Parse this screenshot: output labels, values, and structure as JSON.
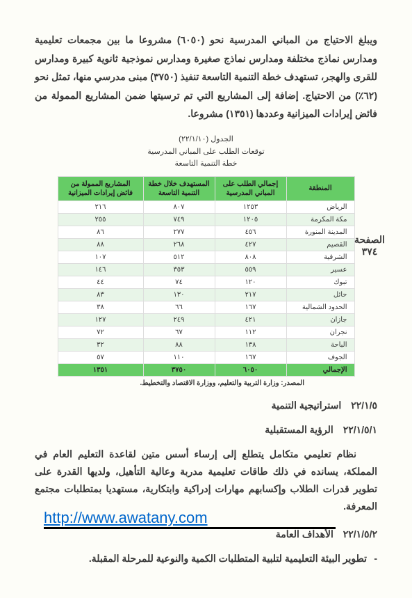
{
  "intro": "ويبلغ الاحتياج من المباني المدرسية نحو (٦٠٥٠) مشروعا ما بين مجمعات تعليمية ومدارس نماذج مختلفة ومدارس نماذج صغيرة ومدارس نموذجية ثانوية كبيرة ومدارس للقرى والهجر، تستهدف خطة التنمية التاسعة تنفيذ (٣٧٥٠) مبنى مدرسي منها، تمثل نحو (٦٢٪) من الاحتياج. إضافة إلى المشاريع التي تم ترسيتها ضمن المشاريع الممولة من فائض إيرادات الميزانية وعددها (١٣٥١) مشروعا.",
  "table_caption": {
    "line1": "الجدول (٢٢/١/١٠)",
    "line2": "توقعات الطلب على المباني المدرسية",
    "line3": "خطة التنمية التاسعة"
  },
  "table": {
    "headers": [
      "المنطقة",
      "إجمالي الطلب على المباني المدرسية",
      "المستهدف خلال خطة التنمية التاسعة",
      "المشاريع الممولة من فائض إيرادات الميزانية"
    ],
    "rows": [
      {
        "region": "الرياض",
        "c1": "١٢٥٣",
        "c2": "٨٠٧",
        "c3": "٢١٦"
      },
      {
        "region": "مكة المكرمة",
        "c1": "١٢٠٥",
        "c2": "٧٤٩",
        "c3": "٢٥٥"
      },
      {
        "region": "المدينة المنورة",
        "c1": "٤٥٦",
        "c2": "٢٧٧",
        "c3": "٨٦"
      },
      {
        "region": "القصيم",
        "c1": "٤٢٧",
        "c2": "٢٦٨",
        "c3": "٨٨"
      },
      {
        "region": "الشرقية",
        "c1": "٨٠٨",
        "c2": "٥١٢",
        "c3": "١٠٧"
      },
      {
        "region": "عسير",
        "c1": "٥٥٩",
        "c2": "٣٥٣",
        "c3": "١٤٦"
      },
      {
        "region": "تبوك",
        "c1": "١٢٠",
        "c2": "٧٤",
        "c3": "٤٤"
      },
      {
        "region": "حائل",
        "c1": "٢١٧",
        "c2": "١٣٠",
        "c3": "٨٣"
      },
      {
        "region": "الحدود الشمالية",
        "c1": "١٦٧",
        "c2": "٦٦",
        "c3": "٣٨"
      },
      {
        "region": "جازان",
        "c1": "٤٢١",
        "c2": "٢٤٩",
        "c3": "١٢٧"
      },
      {
        "region": "نجران",
        "c1": "١١٢",
        "c2": "٦٧",
        "c3": "٧٢"
      },
      {
        "region": "الباحة",
        "c1": "١٣٨",
        "c2": "٨٨",
        "c3": "٣٢"
      },
      {
        "region": "الجوف",
        "c1": "١٦٧",
        "c2": "١١٠",
        "c3": "٥٧"
      }
    ],
    "total": {
      "region": "الإجمالي",
      "c1": "٦٠٥٠",
      "c2": "٣٧٥٠",
      "c3": "١٣٥١"
    }
  },
  "source": "المصدر: وزارة التربية والتعليم، ووزارة الاقتصاد والتخطيط.",
  "sections": {
    "s1_num": "٢٢/١/٥",
    "s1_title": "استراتيجية التنمية",
    "s2_num": "٢٢/١/٥/١",
    "s2_title": "الرؤية المستقبلية",
    "s2_body": "نظام تعليمي متكامل يتطلع إلى إرساء أسس متين لقاعدة التعليم العام في المملكة، يسانده في ذلك طاقات تعليمية مدربة وعالية التأهيل، ولديها القدرة على تطوير قدرات الطلاب وإكسابهم مهارات إدراكية وابتكارية، مستهديا بمتطلبات مجتمع المعرفة.",
    "s3_num": "٢٢/١/٥/٢",
    "s3_title": "الأهداف العامة",
    "s3_item": "تطوير البيئة التعليمية لتلبية المتطلبات الكمية والنوعية للمرحلة المقبلة."
  },
  "page_label": "الصفحة",
  "page_number": "٣٧٤",
  "watermark": "http://www.awatany.com"
}
